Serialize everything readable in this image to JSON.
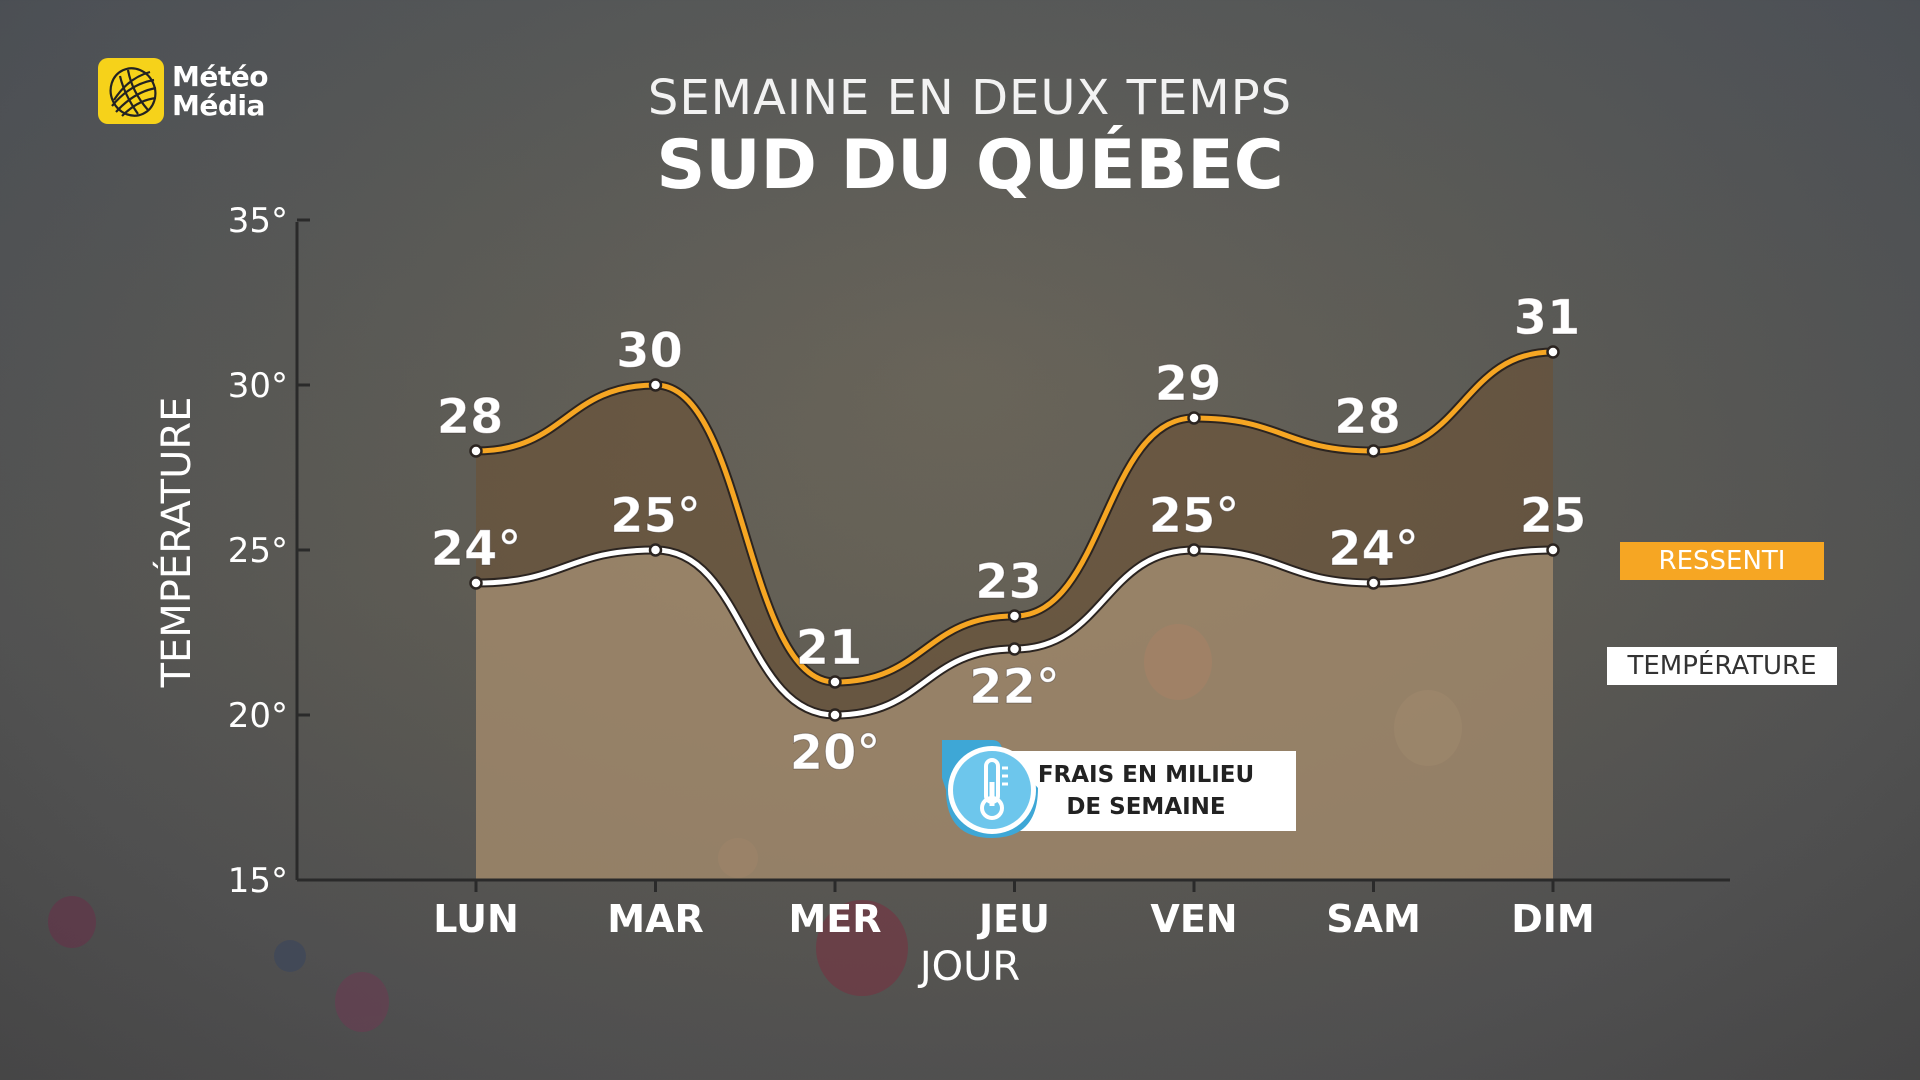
{
  "brand": {
    "line1": "Météo",
    "line2": "Média"
  },
  "heading": {
    "subtitle": "SEMAINE EN DEUX TEMPS",
    "title": "SUD DU QUÉBEC"
  },
  "legend": {
    "ressenti": "RESSENTI",
    "temperature": "TEMPÉRATURE"
  },
  "callout": {
    "line1": "FRAIS EN MILIEU",
    "line2": "DE SEMAINE",
    "icon": "thermometer-icon"
  },
  "colors": {
    "ressenti": "#f6a623",
    "temperature": "#ffffff",
    "axis": "#2a2a2a"
  },
  "chart_data": {
    "type": "area",
    "xlabel": "JOUR",
    "ylabel": "TEMPÉRATURE",
    "ylim": [
      15,
      35
    ],
    "yticks": [
      "15°",
      "20°",
      "25°",
      "30°",
      "35°"
    ],
    "categories": [
      "LUN",
      "MAR",
      "MER",
      "JEU",
      "VEN",
      "SAM",
      "DIM"
    ],
    "series": [
      {
        "name": "RESSENTI",
        "values": [
          28,
          30,
          21,
          23,
          29,
          28,
          31
        ],
        "labels": [
          "28",
          "30",
          "21",
          "23",
          "29",
          "28",
          "31"
        ]
      },
      {
        "name": "TEMPÉRATURE",
        "values": [
          24,
          25,
          20,
          22,
          25,
          24,
          25
        ],
        "labels": [
          "24°",
          "25°",
          "20°",
          "22°",
          "25°",
          "24°",
          "25"
        ]
      }
    ],
    "grid": false,
    "legend_position": "right"
  }
}
